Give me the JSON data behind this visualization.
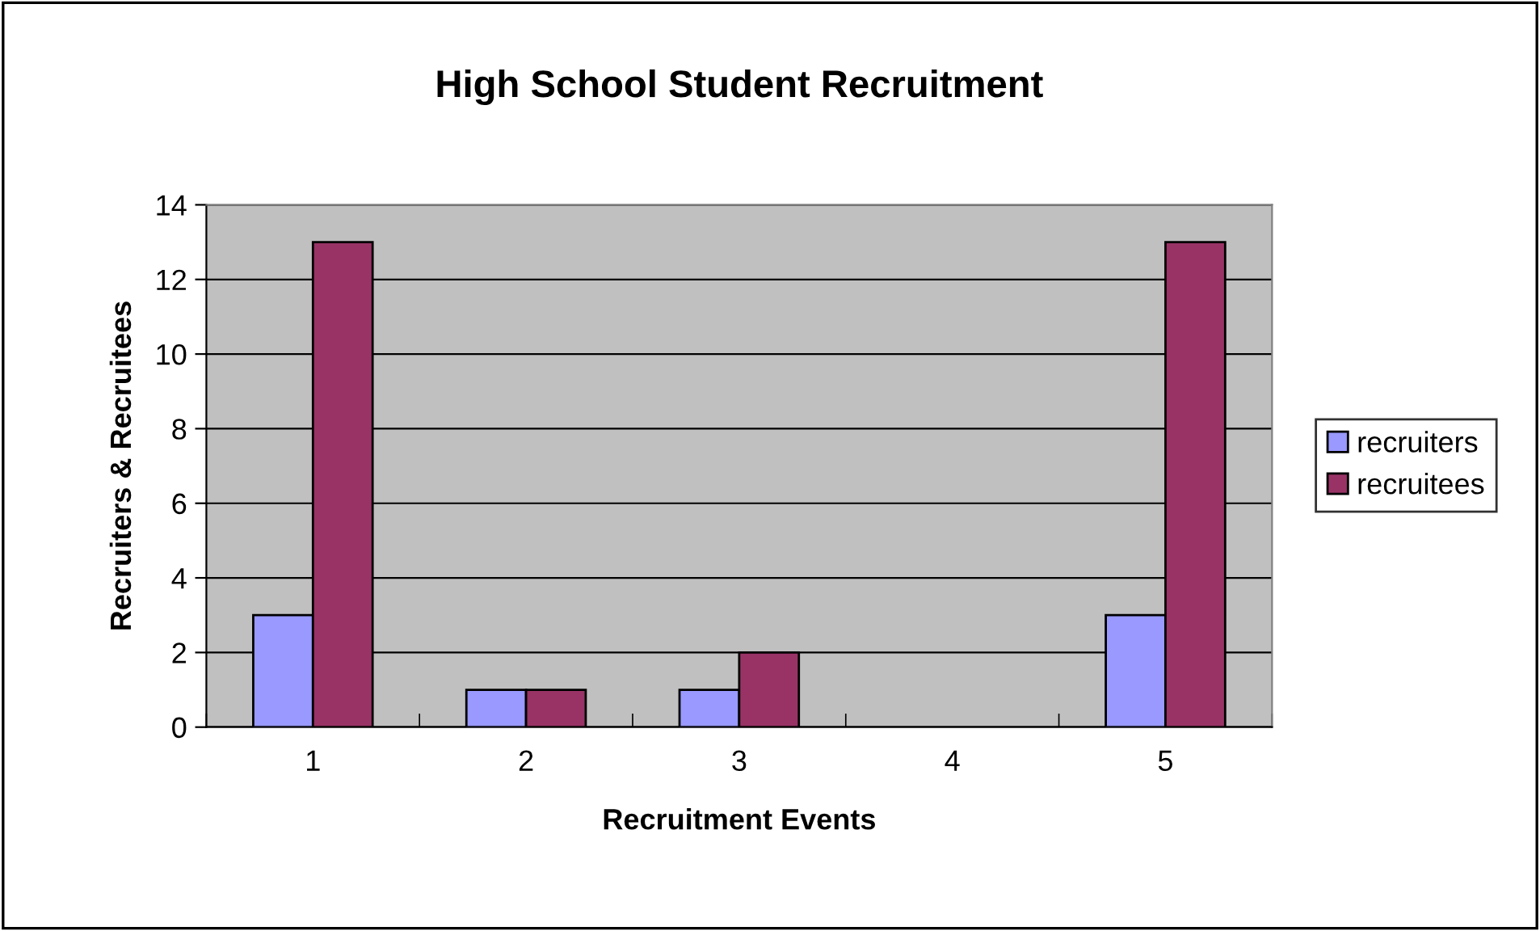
{
  "chart_data": {
    "type": "bar",
    "title": "High School Student Recruitment",
    "xlabel": "Recruitment Events",
    "ylabel": "Recruiters & Recruitees",
    "categories": [
      "1",
      "2",
      "3",
      "4",
      "5"
    ],
    "series": [
      {
        "name": "recruiters",
        "color": "#9999ff",
        "values": [
          3,
          1,
          1,
          null,
          3
        ]
      },
      {
        "name": "recruitees",
        "color": "#993366",
        "values": [
          13,
          1,
          2,
          null,
          13
        ]
      }
    ],
    "ylim": [
      0,
      14
    ],
    "yticks": [
      0,
      2,
      4,
      6,
      8,
      10,
      12,
      14
    ],
    "grid": "y",
    "legend": "right"
  }
}
